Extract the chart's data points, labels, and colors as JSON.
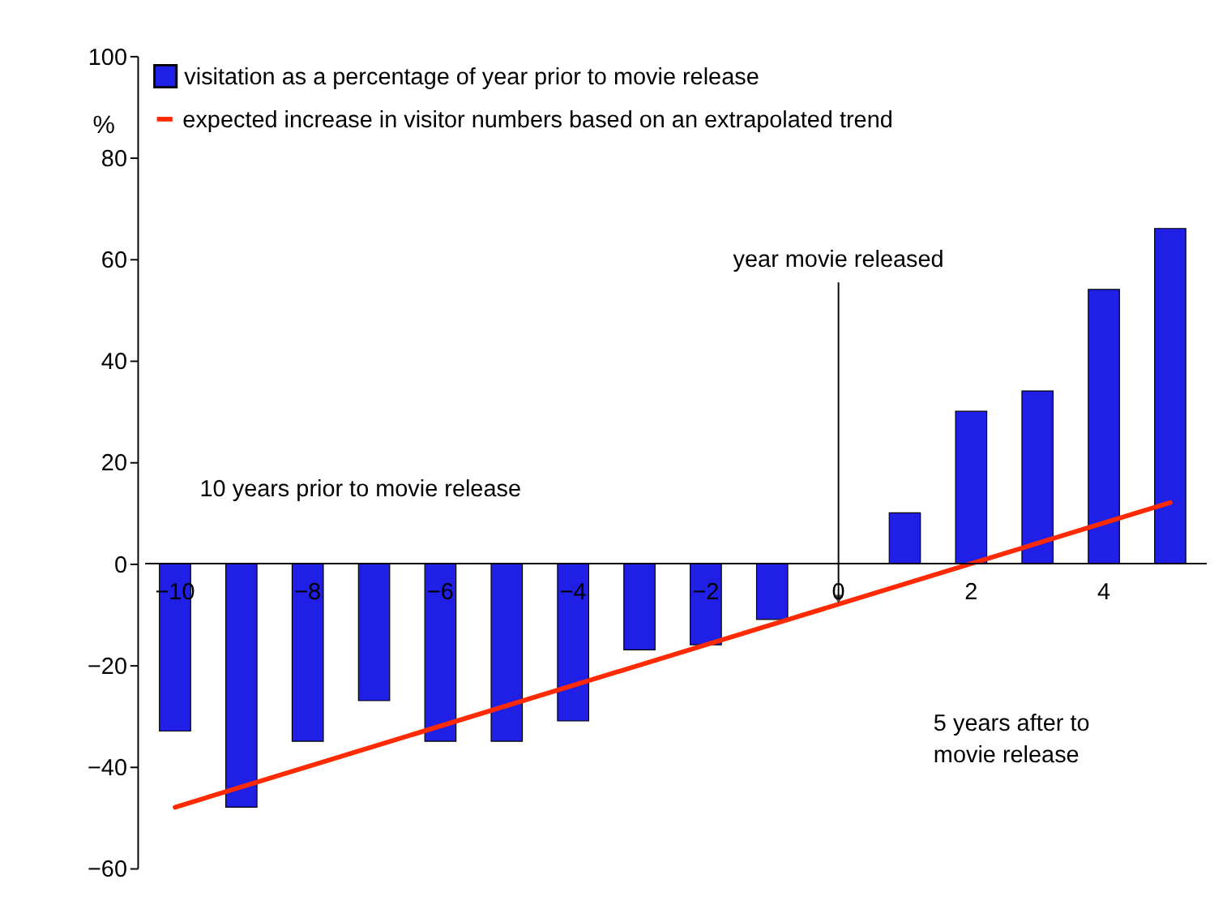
{
  "chart_data": {
    "type": "bar",
    "ylabel": "%",
    "x": [
      -10,
      -9,
      -8,
      -7,
      -6,
      -5,
      -4,
      -3,
      -2,
      -1,
      0,
      1,
      2,
      3,
      4,
      5
    ],
    "series": [
      {
        "name": "visitation as a percentage of year prior to movie release",
        "color": "#1f1fe6",
        "values": [
          -33,
          -48,
          -35,
          -27,
          -35,
          -35,
          -31,
          -17,
          -16,
          -11,
          null,
          10,
          30,
          34,
          54,
          66
        ]
      },
      {
        "name": "expected increase in visitor numbers based on an extrapolated trend",
        "type": "line",
        "color": "#ff2a00",
        "x": [
          -10,
          5
        ],
        "values": [
          -48,
          12
        ]
      }
    ],
    "xlim": [
      -10.45,
      5.55
    ],
    "xticks": [
      -10,
      -8,
      -6,
      -4,
      -2,
      0,
      2,
      4
    ],
    "ylim": [
      -60,
      100
    ],
    "yticks": [
      -60,
      -40,
      -20,
      0,
      20,
      40,
      60,
      80,
      100
    ],
    "grid": false,
    "legend": "top left",
    "annotations": [
      {
        "text": "year movie released",
        "x": 0,
        "y": -7
      },
      "10 years prior to movie release",
      "5 years after to\nmovie release"
    ]
  }
}
